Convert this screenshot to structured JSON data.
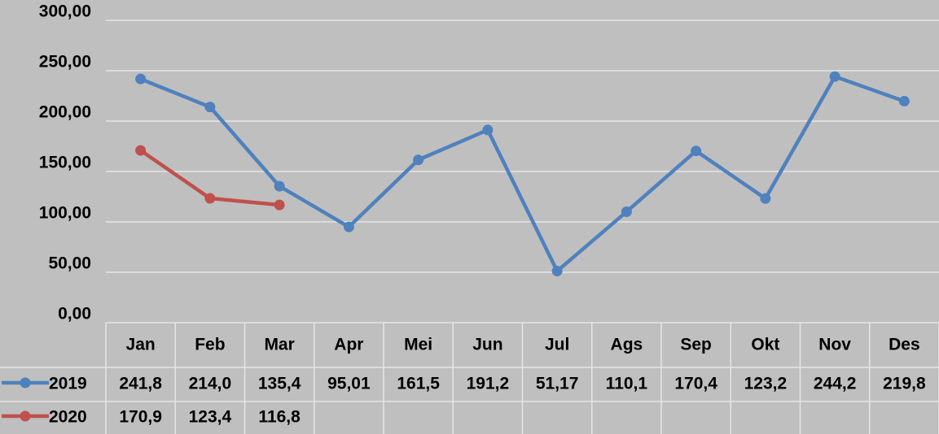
{
  "chart_data": {
    "type": "line",
    "categories": [
      "Jan",
      "Feb",
      "Mar",
      "Apr",
      "Mei",
      "Jun",
      "Jul",
      "Ags",
      "Sep",
      "Okt",
      "Nov",
      "Des"
    ],
    "series": [
      {
        "name": "2019",
        "color": "#4f81bd",
        "values": [
          241.8,
          214.0,
          135.4,
          95.01,
          161.5,
          191.2,
          51.17,
          110.1,
          170.4,
          123.2,
          244.2,
          219.8
        ],
        "value_labels": [
          "241,8",
          "214,0",
          "135,4",
          "95,01",
          "161,5",
          "191,2",
          "51,17",
          "110,1",
          "170,4",
          "123,2",
          "244,2",
          "219,8"
        ]
      },
      {
        "name": "2020",
        "color": "#c0504d",
        "values": [
          170.9,
          123.4,
          116.8,
          null,
          null,
          null,
          null,
          null,
          null,
          null,
          null,
          null
        ],
        "value_labels": [
          "170,9",
          "123,4",
          "116,8",
          null,
          null,
          null,
          null,
          null,
          null,
          null,
          null,
          null
        ]
      }
    ],
    "ylim": [
      0,
      300
    ],
    "yticks": [
      {
        "value": 0,
        "label": "0,00"
      },
      {
        "value": 50,
        "label": "50,00"
      },
      {
        "value": 100,
        "label": "100,00"
      },
      {
        "value": 150,
        "label": "150,00"
      },
      {
        "value": 200,
        "label": "200,00"
      },
      {
        "value": 250,
        "label": "250,00"
      },
      {
        "value": 300,
        "label": "300,00"
      }
    ],
    "grid": true
  }
}
